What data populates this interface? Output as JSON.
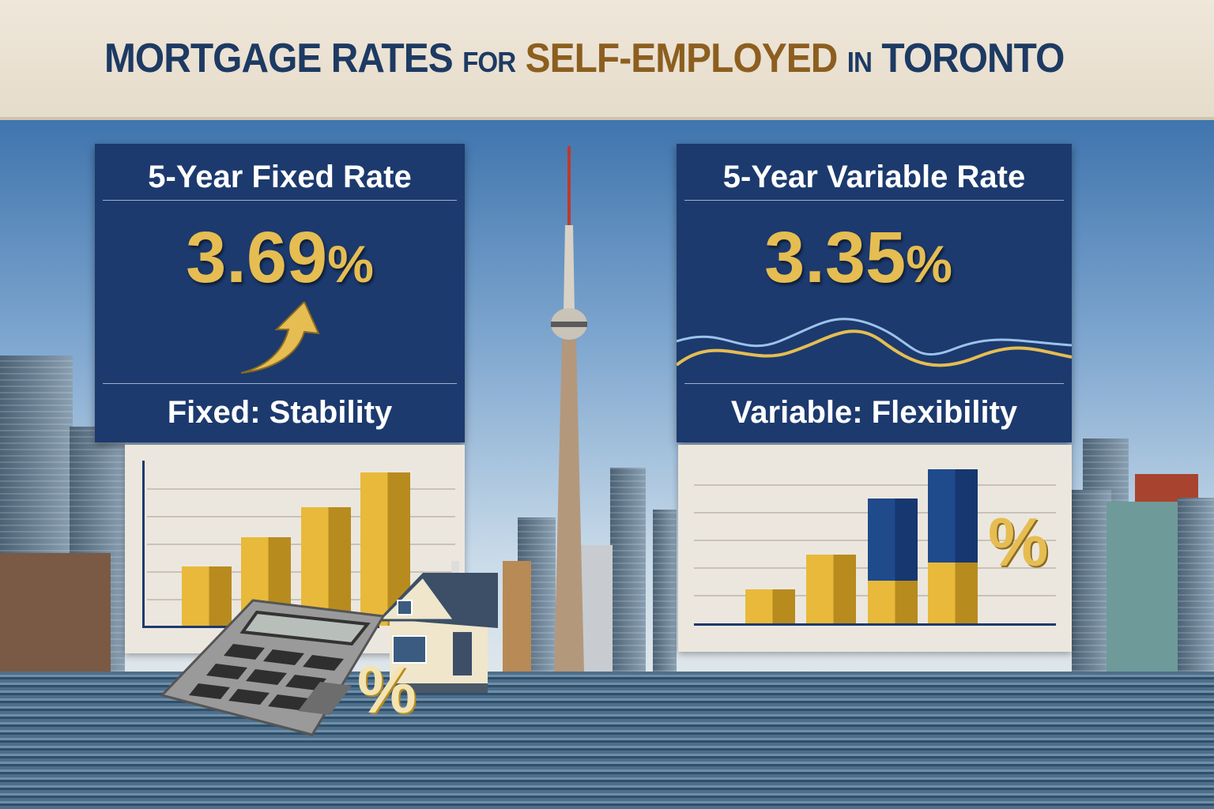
{
  "title": {
    "part1": "MORTGAGE RATES",
    "part2": "FOR",
    "part3": "SELF-EMPLOYED",
    "part4": "IN",
    "part5": "TORONTO"
  },
  "fixed": {
    "heading": "5-Year Fixed Rate",
    "rate": "3.69",
    "percent": "%",
    "subtitle": "Fixed: Stability",
    "icon": "arrow-up-right-icon"
  },
  "variable": {
    "heading": "5-Year Variable Rate",
    "rate": "3.35",
    "percent": "%",
    "subtitle": "Variable: Flexibility",
    "icon": "wave-line-icon"
  },
  "decor": {
    "percent_symbol": "%"
  },
  "colors": {
    "navy": "#1c3a6e",
    "gold": "#e5bd52",
    "title_navy": "#1d3a63",
    "title_gold": "#8c5f1f"
  }
}
